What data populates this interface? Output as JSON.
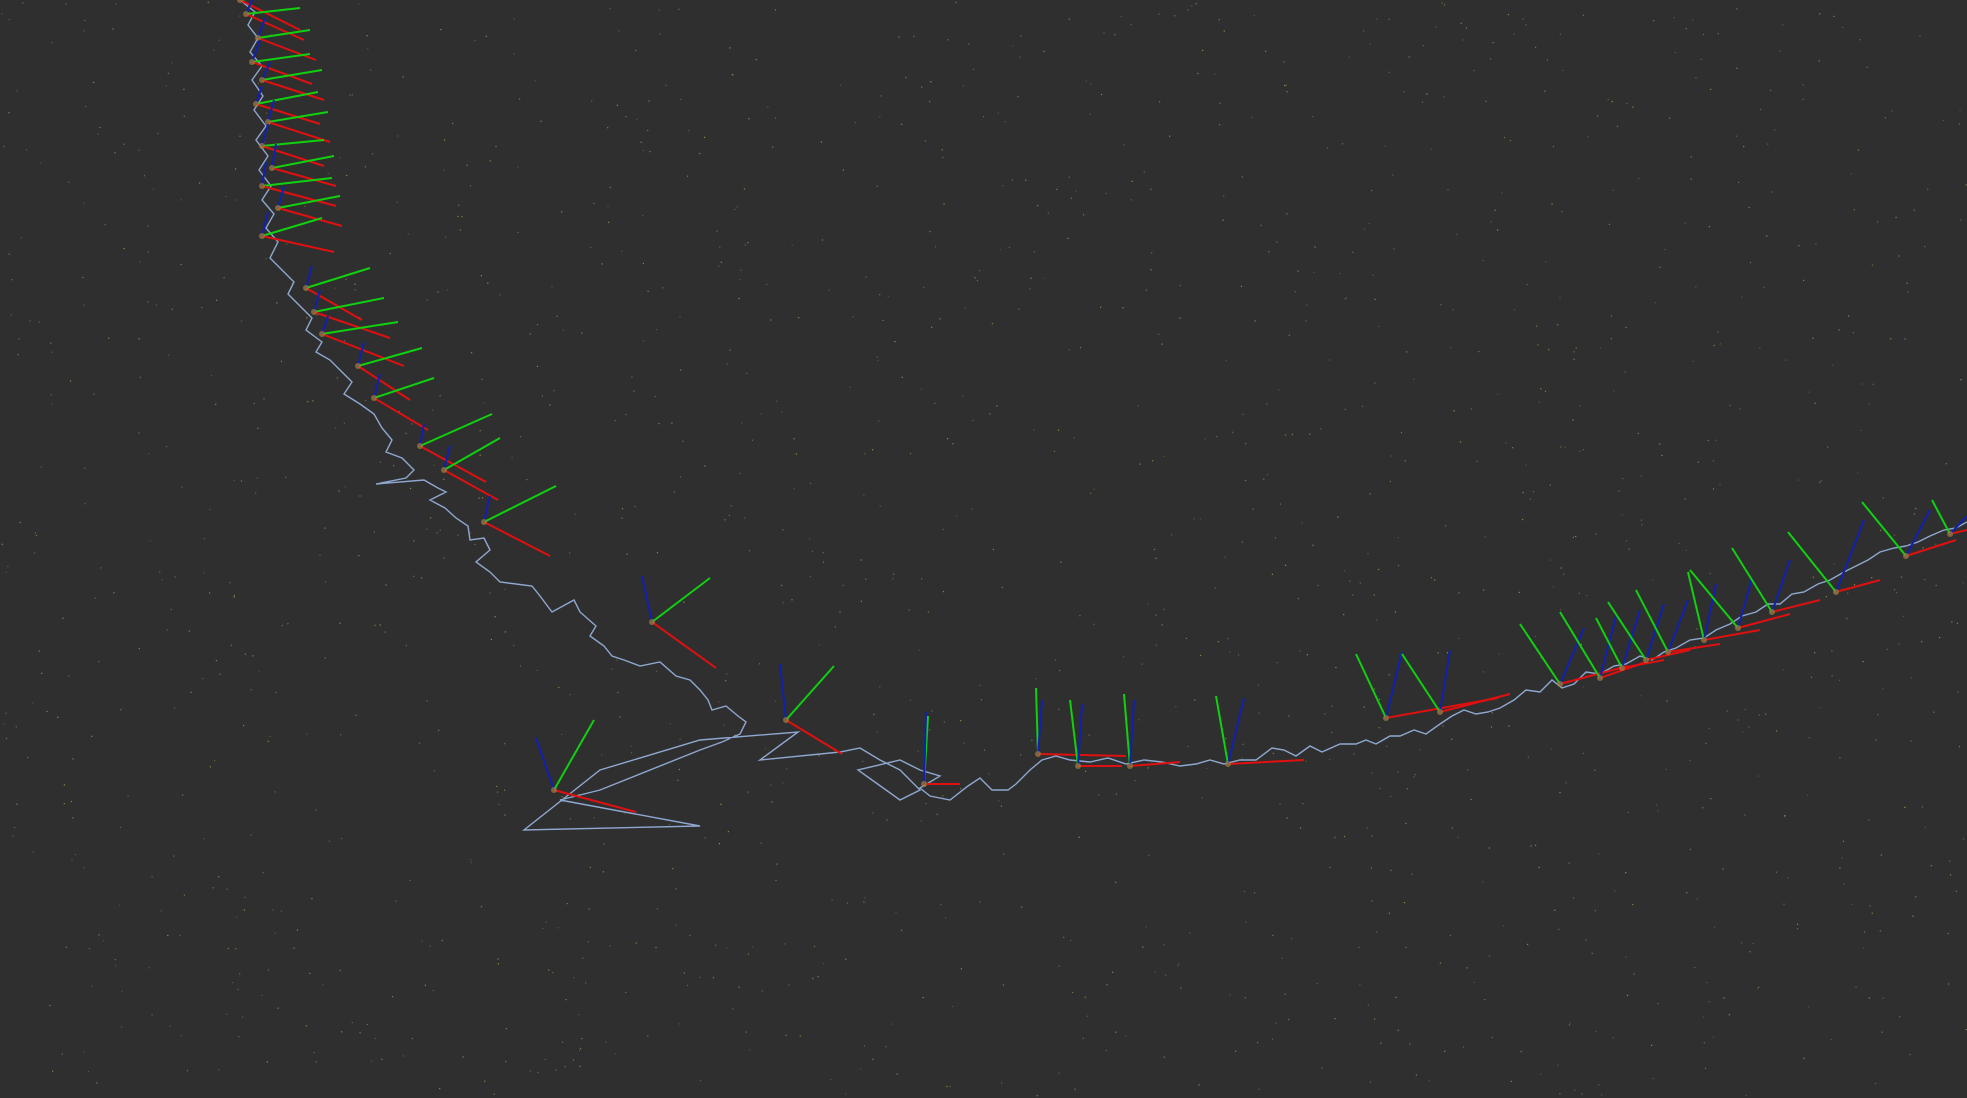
{
  "viewer": {
    "type": "3d-trajectory-viewer",
    "background_color": "#2f2f2f",
    "point_cloud_color": "#c8b060",
    "trajectory_color": "#8fa8d0",
    "pose_axis_colors": {
      "x_axis": "#e01010",
      "y_axis": "#10d010",
      "z_axis": "#1020b0"
    },
    "keyframe_marker_color": "#a08040",
    "labels": []
  }
}
